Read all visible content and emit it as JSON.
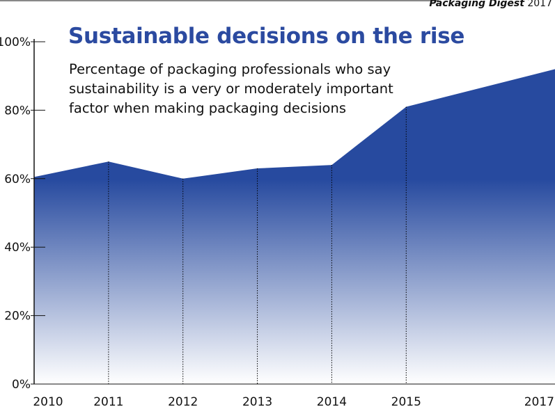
{
  "source": {
    "publication": "Packaging Digest",
    "year": "2017"
  },
  "colors": {
    "area_top": "#274a9f",
    "area_bottom": "#ffffff",
    "title": "#2b4aa0",
    "axis": "#111111"
  },
  "chart_data": {
    "type": "area",
    "title": "Sustainable decisions on the rise",
    "subtitle_lines": [
      "Percentage of packaging professionals who say",
      "sustainability is a very or moderately important",
      "factor when making packaging decisions"
    ],
    "xlabel": "",
    "ylabel": "",
    "x": [
      "2010",
      "2011",
      "2012",
      "2013",
      "2014",
      "2015",
      "2017"
    ],
    "values": [
      60.5,
      65,
      60,
      63,
      64,
      81,
      92
    ],
    "ylim": [
      0,
      100
    ],
    "yticks": [
      0,
      20,
      40,
      60,
      80,
      100
    ],
    "ytick_labels": [
      "0%",
      "20%",
      "40%",
      "60%",
      "80%",
      "100%"
    ],
    "grid": false,
    "legend": "none",
    "vertical_guides": "dotted lines at intermediate years"
  }
}
